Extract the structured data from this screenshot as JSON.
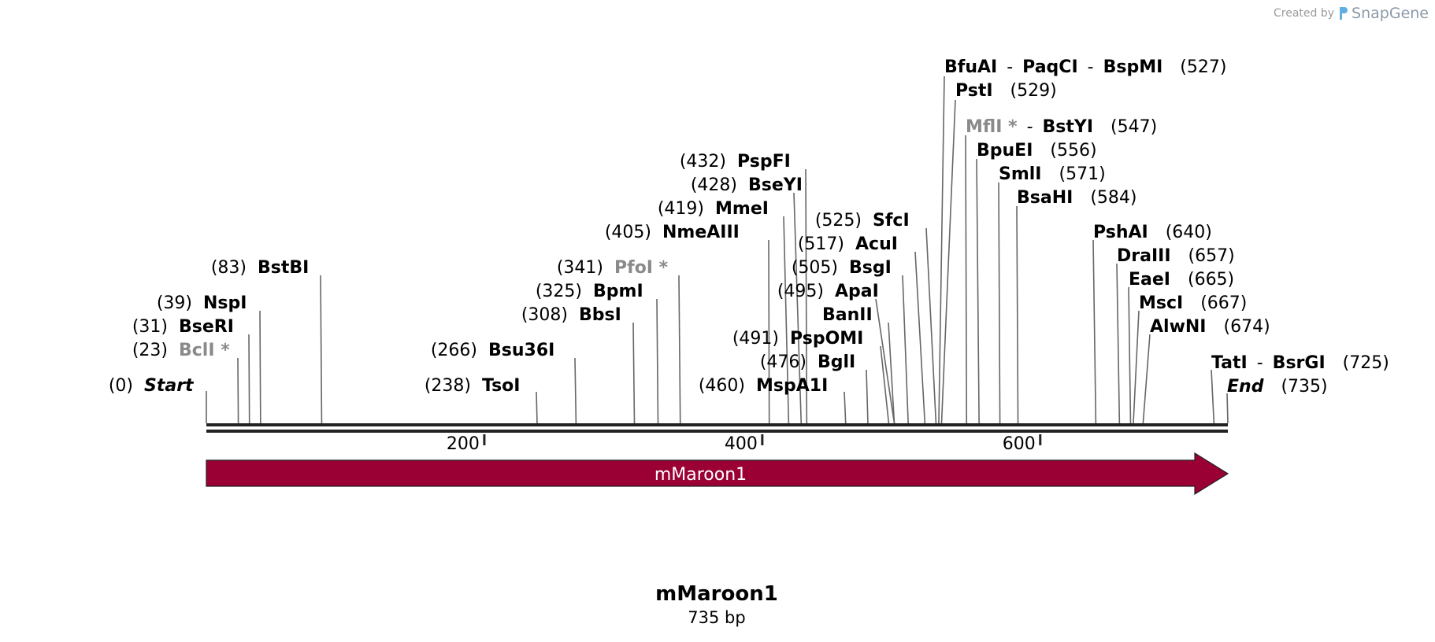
{
  "credit": {
    "created_by": "Created by",
    "brand": "SnapGene"
  },
  "sequence": {
    "name": "mMaroon1",
    "length_label": "735 bp",
    "length_bp": 735
  },
  "feature": {
    "name": "mMaroon1",
    "start": 0,
    "end": 735,
    "color": "#9b0034",
    "direction": "forward"
  },
  "ticks": [
    {
      "bp": 200,
      "label": "200"
    },
    {
      "bp": 400,
      "label": "400"
    },
    {
      "bp": 600,
      "label": "600"
    }
  ],
  "sites": [
    {
      "bp": 0,
      "pos": "(0)",
      "parts": [
        {
          "t": "Start",
          "italic": true
        }
      ]
    },
    {
      "bp": 23,
      "pos": "(23)",
      "parts": [
        {
          "t": "BclI *",
          "gray": true
        }
      ]
    },
    {
      "bp": 31,
      "pos": "(31)",
      "parts": [
        {
          "t": "BseRI"
        }
      ]
    },
    {
      "bp": 39,
      "pos": "(39)",
      "parts": [
        {
          "t": "NspI"
        }
      ]
    },
    {
      "bp": 83,
      "pos": "(83)",
      "parts": [
        {
          "t": "BstBI"
        }
      ]
    },
    {
      "bp": 238,
      "pos": "(238)",
      "parts": [
        {
          "t": "TsoI"
        }
      ]
    },
    {
      "bp": 266,
      "pos": "(266)",
      "parts": [
        {
          "t": "Bsu36I"
        }
      ]
    },
    {
      "bp": 308,
      "pos": "(308)",
      "parts": [
        {
          "t": "BbsI"
        }
      ]
    },
    {
      "bp": 325,
      "pos": "(325)",
      "parts": [
        {
          "t": "BpmI"
        }
      ]
    },
    {
      "bp": 341,
      "pos": "(341)",
      "parts": [
        {
          "t": "PfoI *",
          "gray": true
        }
      ]
    },
    {
      "bp": 405,
      "pos": "(405)",
      "parts": [
        {
          "t": "NmeAIII"
        }
      ]
    },
    {
      "bp": 419,
      "pos": "(419)",
      "parts": [
        {
          "t": "MmeI"
        }
      ]
    },
    {
      "bp": 428,
      "pos": "(428)",
      "parts": [
        {
          "t": "BseYI"
        }
      ]
    },
    {
      "bp": 432,
      "pos": "(432)",
      "parts": [
        {
          "t": "PspFI"
        }
      ]
    },
    {
      "bp": 460,
      "pos": "(460)",
      "parts": [
        {
          "t": "MspA1I"
        }
      ]
    },
    {
      "bp": 476,
      "pos": "(476)",
      "parts": [
        {
          "t": "BglI"
        }
      ]
    },
    {
      "bp": 491,
      "pos": "(491)",
      "parts": [
        {
          "t": "PspOMI"
        }
      ]
    },
    {
      "bp": 495,
      "pos": "(495)",
      "parts": [
        {
          "t": "ApaI"
        }
      ]
    },
    {
      "bp": 495,
      "pos": "",
      "parts": [
        {
          "t": "BanII"
        }
      ]
    },
    {
      "bp": 505,
      "pos": "(505)",
      "parts": [
        {
          "t": "BsgI"
        }
      ]
    },
    {
      "bp": 517,
      "pos": "(517)",
      "parts": [
        {
          "t": "AcuI"
        }
      ]
    },
    {
      "bp": 525,
      "pos": "(525)",
      "parts": [
        {
          "t": "SfcI"
        }
      ]
    },
    {
      "bp": 527,
      "pos": "(527)",
      "parts": [
        {
          "t": "BfuAI"
        },
        {
          "t": "-",
          "sep": true
        },
        {
          "t": "PaqCI"
        },
        {
          "t": "-",
          "sep": true
        },
        {
          "t": "BspMI"
        }
      ]
    },
    {
      "bp": 529,
      "pos": "(529)",
      "parts": [
        {
          "t": "PstI"
        }
      ]
    },
    {
      "bp": 547,
      "pos": "(547)",
      "parts": [
        {
          "t": "MflI *",
          "gray": true
        },
        {
          "t": "-",
          "sep": true
        },
        {
          "t": "BstYI"
        }
      ]
    },
    {
      "bp": 556,
      "pos": "(556)",
      "parts": [
        {
          "t": "BpuEI"
        }
      ]
    },
    {
      "bp": 571,
      "pos": "(571)",
      "parts": [
        {
          "t": "SmlI"
        }
      ]
    },
    {
      "bp": 584,
      "pos": "(584)",
      "parts": [
        {
          "t": "BsaHI"
        }
      ]
    },
    {
      "bp": 640,
      "pos": "(640)",
      "parts": [
        {
          "t": "PshAI"
        }
      ]
    },
    {
      "bp": 657,
      "pos": "(657)",
      "parts": [
        {
          "t": "DraIII"
        }
      ]
    },
    {
      "bp": 665,
      "pos": "(665)",
      "parts": [
        {
          "t": "EaeI"
        }
      ]
    },
    {
      "bp": 667,
      "pos": "(667)",
      "parts": [
        {
          "t": "MscI"
        }
      ]
    },
    {
      "bp": 674,
      "pos": "(674)",
      "parts": [
        {
          "t": "AlwNI"
        }
      ]
    },
    {
      "bp": 725,
      "pos": "(725)",
      "parts": [
        {
          "t": "TatI"
        },
        {
          "t": "-",
          "sep": true
        },
        {
          "t": "BsrGI"
        }
      ]
    },
    {
      "bp": 735,
      "pos": "(735)",
      "parts": [
        {
          "t": "End",
          "italic": true
        }
      ]
    }
  ]
}
